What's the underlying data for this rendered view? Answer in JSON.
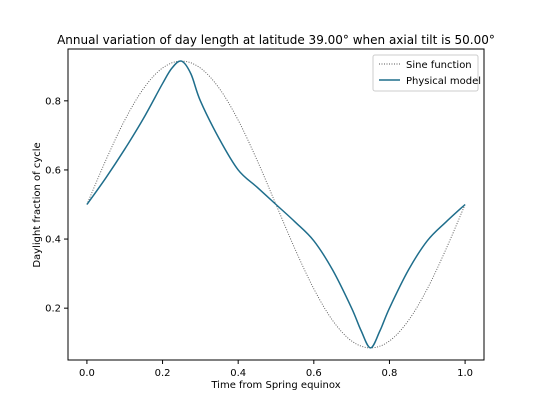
{
  "chart_data": {
    "type": "line",
    "title": "Annual variation of day length at latitude 39.00$^\\circ$ when axial tilt is 50.00$^\\circ$",
    "title_display": "Annual variation of day length at latitude 39.00° when axial tilt is 50.00°",
    "xlabel": "Time from Spring equinox",
    "ylabel": "Daylight fraction of cycle",
    "xlim": [
      -0.05,
      1.05
    ],
    "ylim": [
      0.05,
      0.95
    ],
    "xticks": [
      0.0,
      0.2,
      0.4,
      0.6,
      0.8,
      1.0
    ],
    "xtick_labels": [
      "0.0",
      "0.2",
      "0.4",
      "0.6",
      "0.8",
      "1.0"
    ],
    "yticks": [
      0.2,
      0.4,
      0.6,
      0.8
    ],
    "ytick_labels": [
      "0.2",
      "0.4",
      "0.6",
      "0.8"
    ],
    "grid": false,
    "legend_position": "top-right",
    "series": [
      {
        "name": "Sine function",
        "style": "dotted",
        "color": "#555555",
        "x": [
          0.0,
          0.05,
          0.1,
          0.15,
          0.2,
          0.25,
          0.3,
          0.35,
          0.4,
          0.45,
          0.5,
          0.55,
          0.6,
          0.65,
          0.7,
          0.75,
          0.8,
          0.85,
          0.9,
          0.95,
          1.0
        ],
        "y": [
          0.5,
          0.628,
          0.744,
          0.836,
          0.895,
          0.915,
          0.895,
          0.836,
          0.744,
          0.628,
          0.5,
          0.372,
          0.256,
          0.164,
          0.105,
          0.085,
          0.105,
          0.164,
          0.256,
          0.372,
          0.5
        ]
      },
      {
        "name": "Physical model",
        "style": "solid",
        "color": "#1f6e8c",
        "x": [
          0.0,
          0.05,
          0.1,
          0.15,
          0.2,
          0.225,
          0.25,
          0.275,
          0.3,
          0.35,
          0.4,
          0.45,
          0.5,
          0.55,
          0.6,
          0.65,
          0.7,
          0.725,
          0.75,
          0.775,
          0.8,
          0.85,
          0.9,
          0.95,
          1.0
        ],
        "y": [
          0.5,
          0.577,
          0.66,
          0.75,
          0.85,
          0.895,
          0.915,
          0.878,
          0.8,
          0.69,
          0.6,
          0.55,
          0.5,
          0.45,
          0.395,
          0.31,
          0.2,
          0.135,
          0.085,
          0.135,
          0.2,
          0.31,
          0.395,
          0.45,
          0.5
        ]
      }
    ]
  }
}
